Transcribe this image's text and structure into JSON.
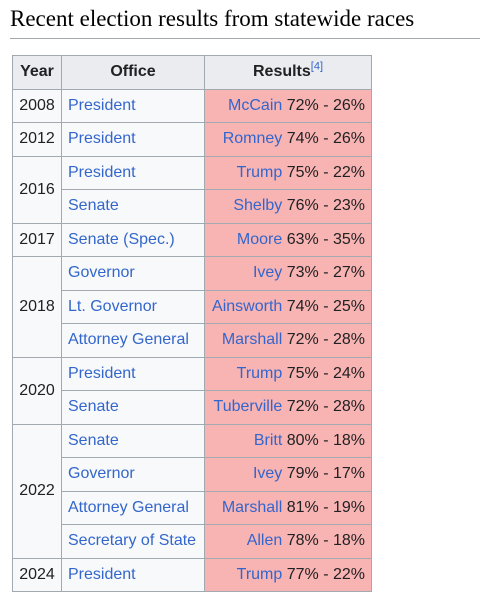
{
  "heading": "Recent election results from statewide races",
  "columns": {
    "year": "Year",
    "office": "Office",
    "results": "Results",
    "results_ref": "[4]"
  },
  "groups": [
    {
      "year": "2008",
      "races": [
        {
          "office": "President",
          "candidate": "McCain",
          "score": "72% - 26%"
        }
      ]
    },
    {
      "year": "2012",
      "races": [
        {
          "office": "President",
          "candidate": "Romney",
          "score": "74% - 26%"
        }
      ]
    },
    {
      "year": "2016",
      "races": [
        {
          "office": "President",
          "candidate": "Trump",
          "score": "75% - 22%"
        },
        {
          "office": "Senate",
          "candidate": "Shelby",
          "score": "76% - 23%"
        }
      ]
    },
    {
      "year": "2017",
      "races": [
        {
          "office": "Senate (Spec.)",
          "candidate": "Moore",
          "score": "63% - 35%"
        }
      ]
    },
    {
      "year": "2018",
      "races": [
        {
          "office": "Governor",
          "candidate": "Ivey",
          "score": "73% - 27%"
        },
        {
          "office": "Lt. Governor",
          "candidate": "Ainsworth",
          "score": "74% - 25%"
        },
        {
          "office": "Attorney General",
          "candidate": "Marshall",
          "score": "72% - 28%"
        }
      ]
    },
    {
      "year": "2020",
      "races": [
        {
          "office": "President",
          "candidate": "Trump",
          "score": "75% - 24%"
        },
        {
          "office": "Senate",
          "candidate": "Tuberville",
          "score": "72% - 28%"
        }
      ]
    },
    {
      "year": "2022",
      "races": [
        {
          "office": "Senate",
          "candidate": "Britt",
          "score": "80% - 18%"
        },
        {
          "office": "Governor",
          "candidate": "Ivey",
          "score": "79% - 17%"
        },
        {
          "office": "Attorney General",
          "candidate": "Marshall",
          "score": "81% - 19%"
        },
        {
          "office": "Secretary of State",
          "candidate": "Allen",
          "score": "78% - 18%"
        }
      ]
    },
    {
      "year": "2024",
      "races": [
        {
          "office": "President",
          "candidate": "Trump",
          "score": "77% - 22%"
        }
      ]
    }
  ],
  "colors": {
    "republican_cell": "#f8b3b3",
    "link": "#3366cc",
    "header_bg": "#eaecf0",
    "table_bg": "#f8f9fa",
    "border": "#a2a9b1"
  }
}
